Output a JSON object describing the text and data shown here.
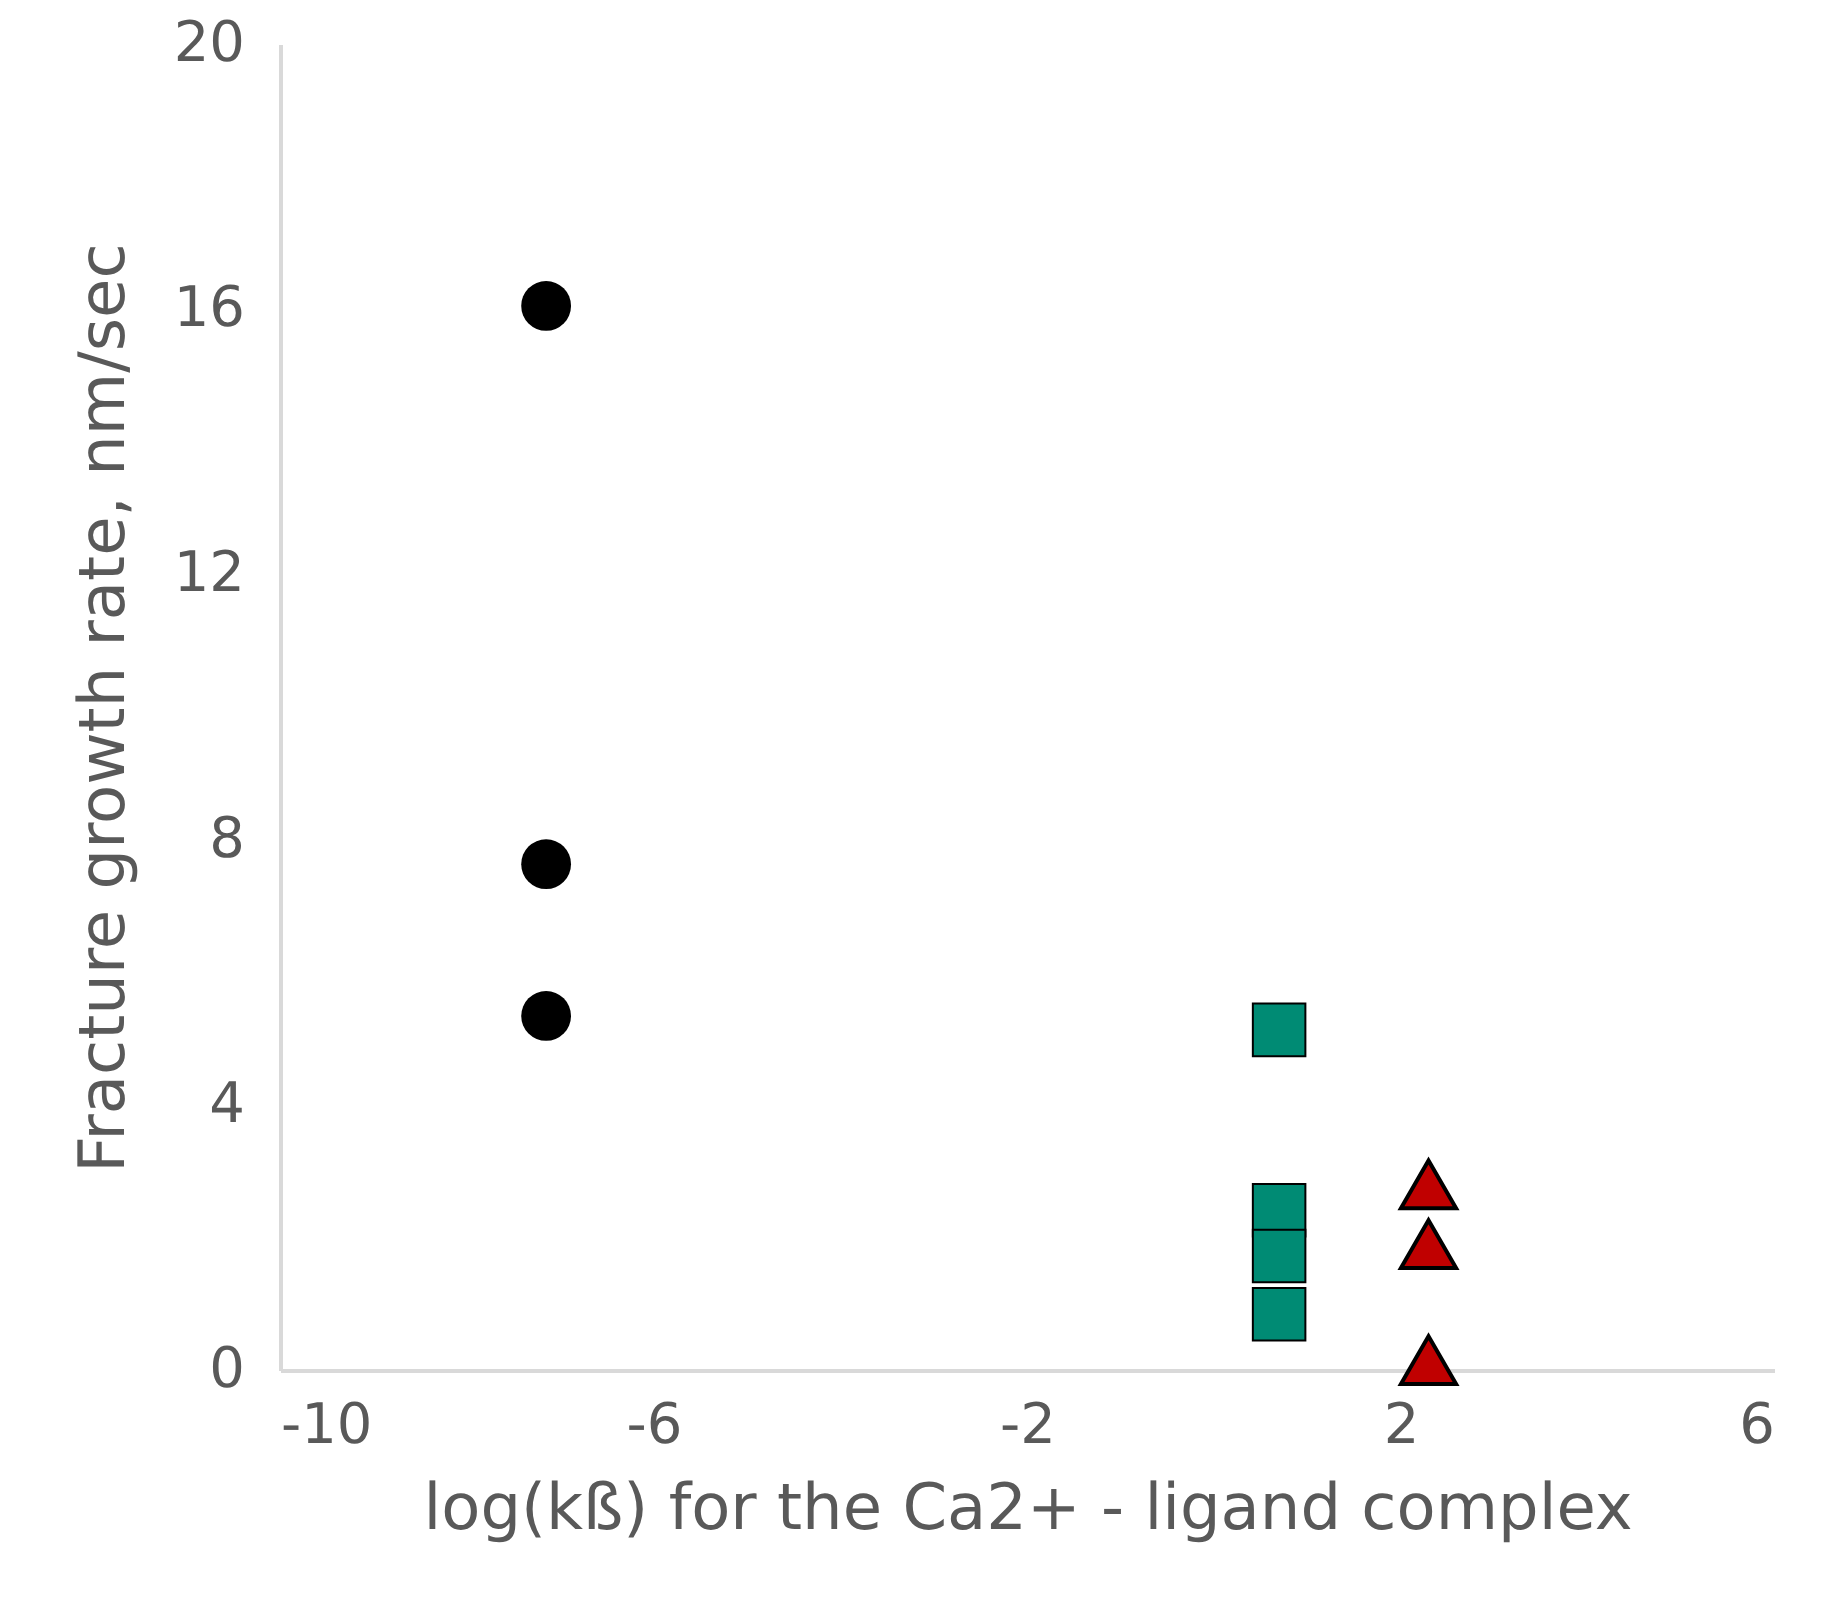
{
  "chart_data": {
    "type": "scatter",
    "xlabel": "log(kß) for the Ca2+ - ligand complex",
    "ylabel": "Fracture growth rate, nm/sec",
    "series": [
      {
        "color": "#000000",
        "marker": "circle",
        "x": [
          -7.15,
          -7.15,
          -7.15
        ],
        "values": [
          16.05,
          7.63,
          5.34
        ]
      },
      {
        "color": "#008b74",
        "marker": "square",
        "x": [
          0.7,
          0.7,
          0.7,
          0.7
        ],
        "values": [
          5.13,
          2.41,
          1.72,
          0.84
        ]
      },
      {
        "color": "#c00000",
        "marker": "triangle",
        "x": [
          2.3,
          2.3,
          2.3
        ],
        "values": [
          2.8,
          1.9,
          0.15
        ]
      }
    ],
    "xlim": [
      -10,
      6
    ],
    "xticks": [
      -10,
      -6,
      -2,
      2,
      6
    ],
    "ylim": [
      0,
      20
    ],
    "yticks": [
      0,
      4,
      8,
      12,
      16,
      20
    ],
    "grid": false
  }
}
